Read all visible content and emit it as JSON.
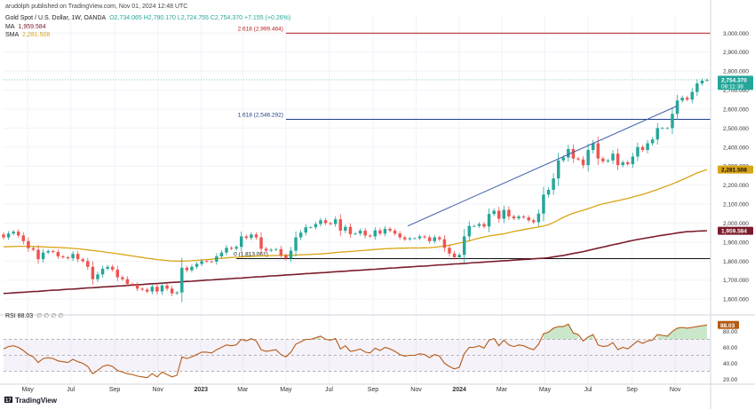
{
  "header": {
    "published": "arudolph published on TradingView.com, Nov 01, 2024 12:48 UTC",
    "symbol": "Gold Spot / U.S. Dollar, 1W, OANDA",
    "ohlc": "O2,734.065  H2,790.170  L2,724.755  C2,754.370  +7.155 (+0.26%)",
    "ma_label": "MA",
    "ma_value": "1,959.584",
    "sma_label": "SMA",
    "sma_value": "2,281.508"
  },
  "footer": {
    "brand": "TradingView"
  },
  "colors": {
    "up": "#26a69a",
    "down": "#ef5350",
    "sma": "#d9a416",
    "ma": "#7b1c2b",
    "rsi": "#b65a12",
    "fib_upper": "#b71c1c",
    "fib_lower": "#1e3f8a",
    "trend": "#3f5aa8"
  },
  "chart_data": [
    {
      "type": "candlestick",
      "title": "Gold Spot / U.S. Dollar, 1W, OANDA",
      "ylim": [
        1540,
        3090
      ],
      "y_ticks": [
        "1,600.000",
        "1,700.000",
        "1,800.000",
        "1,900.000",
        "2,000.000",
        "2,100.000",
        "2,200.000",
        "2,300.000",
        "2,400.000",
        "2,500.000",
        "2,600.000",
        "2,700.000",
        "2,800.000",
        "2,900.000",
        "3,000.000"
      ],
      "x_ticks": [
        "May",
        "Jul",
        "Sep",
        "Nov",
        "2023",
        "Mar",
        "May",
        "Jul",
        "Sep",
        "Nov",
        "2024",
        "Mar",
        "May",
        "Jul",
        "Sep",
        "Nov"
      ],
      "x_start": "2022-03-28",
      "close": [
        1925,
        1945,
        1955,
        1935,
        1905,
        1868,
        1860,
        1810,
        1845,
        1853,
        1848,
        1825,
        1820,
        1815,
        1838,
        1810,
        1800,
        1770,
        1705,
        1730,
        1760,
        1770,
        1755,
        1715,
        1705,
        1680,
        1675,
        1655,
        1650,
        1640,
        1665,
        1640,
        1672,
        1655,
        1630,
        1635,
        1765,
        1752,
        1770,
        1785,
        1800,
        1798,
        1797,
        1825,
        1845,
        1870,
        1865,
        1875,
        1930,
        1922,
        1940,
        1925,
        1865,
        1855,
        1860,
        1863,
        1830,
        1815,
        1855,
        1925,
        1950,
        1978,
        1978,
        1995,
        2015,
        2000,
        1995,
        2020,
        1960,
        1980,
        1942,
        1945,
        1960,
        1935,
        1930,
        1962,
        1945,
        1970,
        1960,
        1945,
        1925,
        1915,
        1920,
        1920,
        1930,
        1925,
        1905,
        1925,
        1915,
        1870,
        1840,
        1820,
        1833,
        1930,
        1985,
        1985,
        1995,
        1982,
        2048,
        2065,
        2023,
        2070,
        2035,
        2025,
        2035,
        2030,
        2015,
        2005,
        2050,
        2150,
        2175,
        2235,
        2330,
        2345,
        2390,
        2340,
        2335,
        2305,
        2385,
        2420,
        2340,
        2325,
        2330,
        2365,
        2305,
        2320,
        2310,
        2350,
        2400,
        2385,
        2420,
        2440,
        2500,
        2500,
        2500,
        2575,
        2645,
        2660,
        2650,
        2690,
        2735,
        2750,
        2754
      ],
      "sma": [
        1875,
        1876,
        1877,
        1878,
        1878,
        1878,
        1877,
        1876,
        1875,
        1874,
        1873,
        1872,
        1870,
        1869,
        1867,
        1865,
        1862,
        1859,
        1856,
        1853,
        1850,
        1846,
        1843,
        1839,
        1835,
        1831,
        1827,
        1823,
        1819,
        1815,
        1812,
        1808,
        1806,
        1803,
        1801,
        1800,
        1800,
        1801,
        1802,
        1804,
        1806,
        1808,
        1810,
        1813,
        1815,
        1817,
        1819,
        1820,
        1822,
        1823,
        1825,
        1826,
        1827,
        1828,
        1829,
        1830,
        1830,
        1831,
        1831,
        1832,
        1833,
        1834,
        1835,
        1837,
        1838,
        1840,
        1842,
        1845,
        1847,
        1849,
        1851,
        1853,
        1855,
        1857,
        1859,
        1861,
        1863,
        1865,
        1866,
        1867,
        1868,
        1868,
        1869,
        1869,
        1869,
        1870,
        1871,
        1873,
        1876,
        1879,
        1884,
        1889,
        1895,
        1901,
        1907,
        1914,
        1921,
        1927,
        1932,
        1936,
        1940,
        1944,
        1950,
        1956,
        1961,
        1966,
        1971,
        1975,
        1980,
        1985,
        1992,
        2003,
        2017,
        2030,
        2042,
        2052,
        2060,
        2068,
        2076,
        2085,
        2094,
        2101,
        2107,
        2113,
        2118,
        2124,
        2130,
        2137,
        2144,
        2151,
        2159,
        2168,
        2177,
        2187,
        2196,
        2206,
        2217,
        2228,
        2240,
        2252,
        2264,
        2273,
        2281
      ],
      "ma": [
        1630,
        1631,
        1633,
        1635,
        1636,
        1638,
        1640,
        1641,
        1643,
        1645,
        1647,
        1648,
        1650,
        1652,
        1653,
        1655,
        1657,
        1659,
        1660,
        1662,
        1664,
        1665,
        1667,
        1669,
        1670,
        1672,
        1674,
        1676,
        1677,
        1679,
        1681,
        1682,
        1684,
        1686,
        1688,
        1689,
        1691,
        1693,
        1694,
        1696,
        1698,
        1700,
        1701,
        1703,
        1705,
        1706,
        1708,
        1710,
        1711,
        1713,
        1715,
        1717,
        1718,
        1720,
        1722,
        1723,
        1725,
        1727,
        1728,
        1730,
        1732,
        1734,
        1735,
        1737,
        1739,
        1740,
        1742,
        1744,
        1746,
        1747,
        1749,
        1751,
        1752,
        1754,
        1756,
        1757,
        1759,
        1761,
        1763,
        1764,
        1766,
        1768,
        1769,
        1771,
        1773,
        1774,
        1776,
        1778,
        1780,
        1781,
        1783,
        1785,
        1786,
        1788,
        1790,
        1792,
        1793,
        1795,
        1797,
        1798,
        1800,
        1802,
        1803,
        1805,
        1807,
        1809,
        1810,
        1812,
        1814,
        1815,
        1818,
        1822,
        1826,
        1830,
        1835,
        1840,
        1845,
        1850,
        1856,
        1862,
        1868,
        1874,
        1880,
        1886,
        1891,
        1897,
        1903,
        1909,
        1914,
        1918,
        1923,
        1927,
        1932,
        1936,
        1940,
        1944,
        1948,
        1952,
        1955,
        1956,
        1958,
        1959,
        1960
      ],
      "last_price": "2,754.370",
      "countdown": "08:11:38",
      "sma_value": "2,281.508",
      "ma_value": "1,959.584",
      "annotations": [
        {
          "label": "2.618 (2,999.464)",
          "value": 2999.464
        },
        {
          "label": "1.618 (2,546.292)",
          "value": 2546.292
        },
        {
          "label": "0 (1,813.061)",
          "value": 1813.061
        }
      ],
      "trendline": [
        [
          2023.8,
          1985
        ],
        [
          2024.84,
          2615
        ]
      ]
    },
    {
      "type": "line",
      "title": "RSI 88.03",
      "ylim": [
        15,
        95
      ],
      "y_ticks": [
        "20.00",
        "40.00",
        "60.00",
        "80.00"
      ],
      "levels": [
        70,
        50,
        30
      ],
      "last_value": "88.03",
      "values": [
        58,
        61,
        62,
        60,
        56,
        51,
        48,
        41,
        46,
        47,
        46,
        43,
        42,
        41,
        45,
        42,
        40,
        36,
        27,
        31,
        36,
        38,
        36,
        31,
        29,
        27,
        26,
        24,
        23,
        22,
        27,
        23,
        29,
        26,
        23,
        25,
        48,
        46,
        48,
        51,
        54,
        54,
        53,
        57,
        60,
        63,
        62,
        63,
        70,
        68,
        71,
        68,
        57,
        55,
        56,
        57,
        51,
        48,
        54,
        64,
        67,
        70,
        70,
        72,
        74,
        70,
        69,
        71,
        58,
        62,
        55,
        56,
        58,
        54,
        53,
        59,
        56,
        60,
        58,
        55,
        51,
        49,
        50,
        50,
        52,
        51,
        47,
        51,
        49,
        40,
        36,
        33,
        35,
        52,
        60,
        60,
        62,
        59,
        69,
        71,
        62,
        69,
        63,
        61,
        63,
        62,
        59,
        57,
        64,
        77,
        79,
        84,
        86,
        86,
        89,
        78,
        76,
        68,
        73,
        76,
        63,
        61,
        62,
        66,
        57,
        60,
        58,
        63,
        68,
        65,
        68,
        69,
        76,
        75,
        74,
        80,
        84,
        85,
        84,
        85,
        86,
        87,
        88
      ]
    }
  ]
}
